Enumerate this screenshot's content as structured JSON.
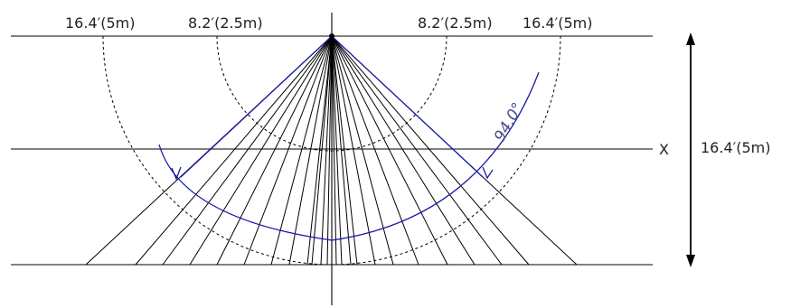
{
  "labels": {
    "left_outer_distance": "16.4′(5m)",
    "left_inner_distance": "8.2′(2.5m)",
    "right_inner_distance": "8.2′(2.5m)",
    "right_outer_distance": "16.4′(5m)",
    "center_axis": "X",
    "height_distance": "16.4′(5m)",
    "detection_angle": "94.0°"
  },
  "colors": {
    "line": "#000000",
    "accent": "#1a1aa8",
    "angle_text": "#4a4a8a"
  }
}
